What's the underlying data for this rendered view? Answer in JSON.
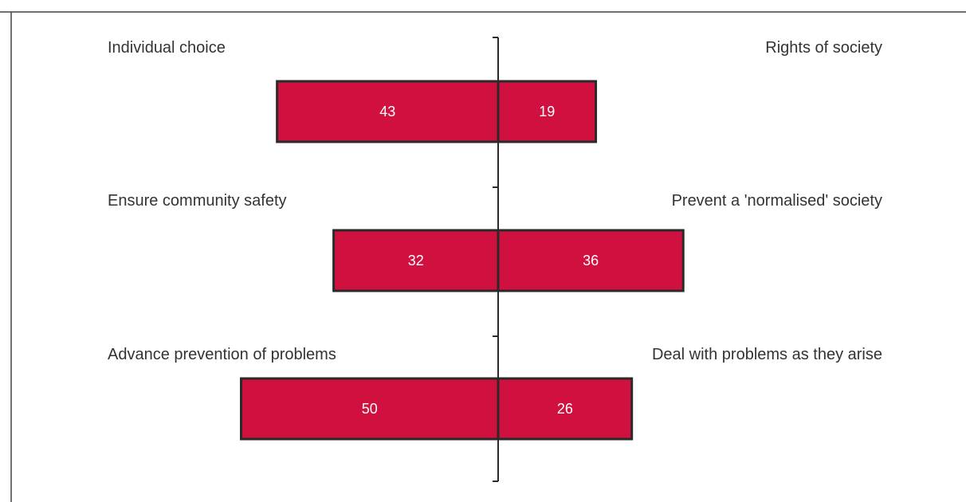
{
  "colors": {
    "bar_fill": "#D0103F",
    "bar_stroke": "#2a2a2a",
    "axis": "#2a2a2a",
    "frame": "#444444",
    "label_text": "#333333",
    "value_text": "#ffffff"
  },
  "chart_data": {
    "type": "bar",
    "orientation": "horizontal-diverging",
    "grid": false,
    "legend": "none",
    "xlim": [
      -55,
      55
    ],
    "items": [
      {
        "left_label": "Individual choice",
        "right_label": "Rights of society",
        "left_value": 43,
        "right_value": 19
      },
      {
        "left_label": "Ensure community safety",
        "right_label": "Prevent a 'normalised' society",
        "left_value": 32,
        "right_value": 36
      },
      {
        "left_label": "Advance prevention of problems",
        "right_label": "Deal with problems as they arise",
        "left_value": 50,
        "right_value": 26
      }
    ]
  }
}
